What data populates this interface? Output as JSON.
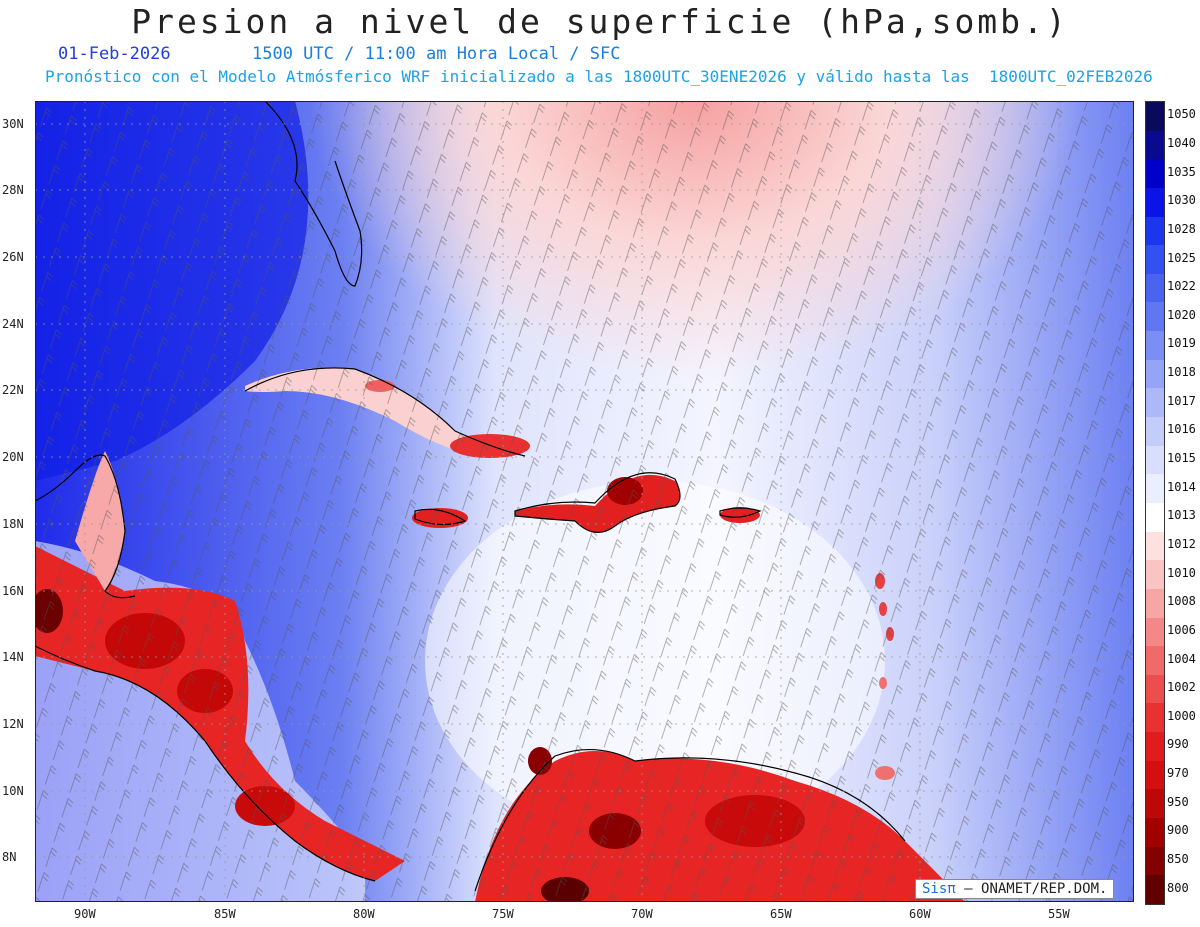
{
  "header": {
    "title": "Presion a nivel de superficie (hPa,somb.)",
    "date": "01-Feb-2026",
    "time_line": "1500 UTC / 11:00 am Hora Local / SFC",
    "model_line": "Pronóstico con el Modelo Atmósferico WRF inicializado a las 1800UTC_30ENE2026 y válido hasta las  1800UTC_02FEB2026"
  },
  "credit": {
    "brand": "Sisπ",
    "text": "– ONAMET/REP.DOM."
  },
  "lat_labels": [
    "30N",
    "28N",
    "26N",
    "24N",
    "22N",
    "20N",
    "18N",
    "16N",
    "14N",
    "12N",
    "10N",
    "8N"
  ],
  "lon_labels": [
    "90W",
    "85W",
    "80W",
    "75W",
    "70W",
    "65W",
    "60W",
    "55W"
  ],
  "colorbar": {
    "levels": [
      "1050",
      "1040",
      "1035",
      "1030",
      "1028",
      "1025",
      "1022",
      "1020",
      "1019",
      "1018",
      "1017",
      "1016",
      "1015",
      "1014",
      "1013",
      "1012",
      "1010",
      "1008",
      "1006",
      "1004",
      "1002",
      "1000",
      "990",
      "970",
      "950",
      "900",
      "850",
      "800"
    ],
    "colors": [
      "#0a0a5c",
      "#0a0a8f",
      "#0000c8",
      "#0a14e6",
      "#1c36ee",
      "#3350f0",
      "#4a64f0",
      "#5f78f2",
      "#7a8ef4",
      "#94a4f6",
      "#adb8f8",
      "#c4cdfa",
      "#d8defc",
      "#eaeefe",
      "#ffffff",
      "#fde0e0",
      "#fac4c4",
      "#f7a6a6",
      "#f48888",
      "#f06a6a",
      "#ec4e4e",
      "#e83232",
      "#e01c1c",
      "#d21010",
      "#bc0808",
      "#a00000",
      "#820000",
      "#600000"
    ]
  }
}
